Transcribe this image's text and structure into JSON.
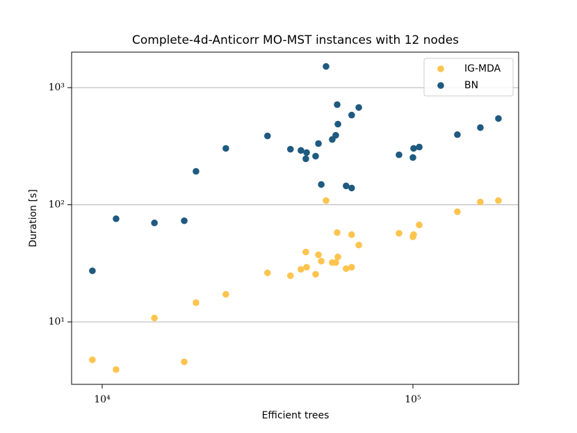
{
  "chart_data": {
    "type": "scatter",
    "title": "Complete-4d-Anticorr MO-MST instances with 12 nodes",
    "x_label": "Efficient trees",
    "y_label": "Duration [s]",
    "x": [
      9300,
      11085,
      14730,
      18370,
      20040,
      25000,
      34040,
      40350,
      43610,
      45480,
      45220,
      48620,
      49650,
      50700,
      52530,
      55000,
      56450,
      57050,
      57350,
      60950,
      63500,
      63500,
      66950,
      90200,
      100000,
      100500,
      104800,
      139000,
      164800,
      188400
    ],
    "series": [
      {
        "name": "IG-MDA",
        "color": "#fdc44f",
        "values": [
          4.75,
          3.92,
          10.8,
          4.56,
          14.6,
          17.2,
          26.2,
          24.8,
          28.1,
          29.3,
          39.5,
          25.5,
          37.4,
          33.0,
          108.6,
          32.1,
          32.1,
          57.9,
          35.9,
          28.5,
          29.3,
          55.6,
          45.3,
          57.1,
          53.3,
          55.6,
          67.3,
          87.3,
          105.6,
          108.6
        ]
      },
      {
        "name": "BN",
        "color": "#1f5a80",
        "values": [
          27.3,
          76,
          70,
          73,
          193,
          303,
          387,
          298,
          291,
          279,
          247,
          260,
          333,
          149,
          1517,
          361,
          392,
          716,
          488,
          145,
          139,
          583,
          677,
          267,
          253,
          303,
          311,
          397,
          456,
          545
        ]
      }
    ],
    "xlim": [
      7973,
      218800
    ],
    "ylim": [
      2.93,
      2010
    ],
    "xscale": "log",
    "yscale": "log",
    "xticks": [
      {
        "value": 10000,
        "label": "10⁴"
      },
      {
        "value": 100000,
        "label": "10⁵"
      }
    ],
    "yticks": [
      {
        "value": 10,
        "label": "10¹"
      },
      {
        "value": 100,
        "label": "10²"
      },
      {
        "value": 1000,
        "label": "10³"
      }
    ],
    "grid": true,
    "legend": "upper right"
  }
}
